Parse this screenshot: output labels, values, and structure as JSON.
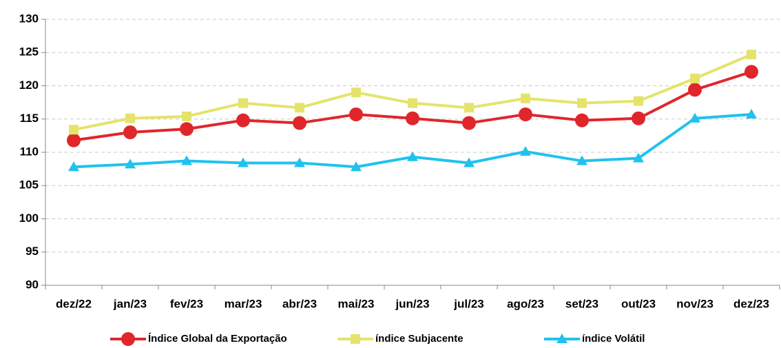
{
  "chart_data": {
    "type": "line",
    "categories": [
      "dez/22",
      "jan/23",
      "fev/23",
      "mar/23",
      "abr/23",
      "mai/23",
      "jun/23",
      "jul/23",
      "ago/23",
      "set/23",
      "out/23",
      "nov/23",
      "dez/23"
    ],
    "series": [
      {
        "name": "Índice Global da Exportação",
        "color": "#e0262b",
        "marker": "circle",
        "values": [
          111.8,
          113.0,
          113.5,
          114.8,
          114.4,
          115.7,
          115.1,
          114.4,
          115.7,
          114.8,
          115.1,
          119.4,
          122.1
        ]
      },
      {
        "name": "índice Subjacente",
        "color": "#e5e36a",
        "marker": "square",
        "values": [
          113.4,
          115.1,
          115.4,
          117.4,
          116.7,
          119.0,
          117.4,
          116.7,
          118.1,
          117.4,
          117.7,
          121.1,
          124.7
        ]
      },
      {
        "name": "índice Volátil",
        "color": "#1fc2ef",
        "marker": "triangle",
        "values": [
          107.8,
          108.2,
          108.7,
          108.4,
          108.4,
          107.8,
          109.3,
          108.4,
          110.1,
          108.7,
          109.1,
          115.1,
          115.7
        ]
      }
    ],
    "ylim": [
      90,
      130
    ],
    "yticks": [
      90,
      95,
      100,
      105,
      110,
      115,
      120,
      125,
      130
    ],
    "grid": true
  }
}
